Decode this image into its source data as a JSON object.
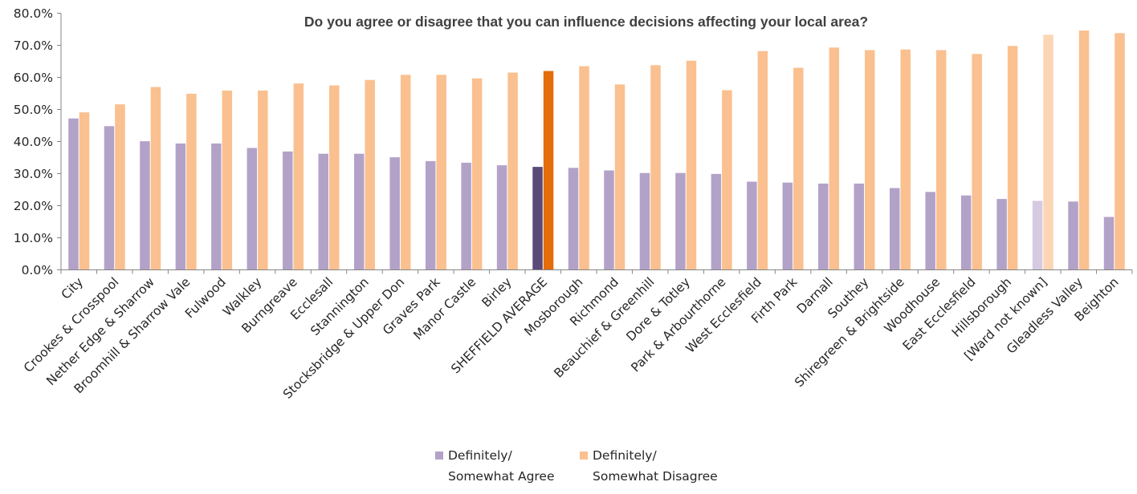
{
  "chart_data": {
    "type": "bar",
    "title": "Do you agree or disagree that you can influence decisions affecting your local area?",
    "xlabel": "",
    "ylabel": "",
    "ylim": [
      0,
      80
    ],
    "yticks": [
      "0.0%",
      "10.0%",
      "20.0%",
      "30.0%",
      "40.0%",
      "50.0%",
      "60.0%",
      "70.0%",
      "80.0%"
    ],
    "grid": false,
    "legend_position": "bottom",
    "categories": [
      "City",
      "Crookes & Crosspool",
      "Nether Edge & Sharrow",
      "Broomhill & Sharrow Vale",
      "Fulwood",
      "Walkley",
      "Burngreave",
      "Ecclesall",
      "Stannington",
      "Stocksbridge & Upper Don",
      "Graves Park",
      "Manor Castle",
      "Birley",
      "SHEFFIELD AVERAGE",
      "Mosborough",
      "Richmond",
      "Beauchief & Greenhill",
      "Dore & Totley",
      "Park & Arbourthorne",
      "West Ecclesfield",
      "Firth Park",
      "Darnall",
      "Southey",
      "Shiregreen & Brightside",
      "Woodhouse",
      "East Ecclesfield",
      "Hillsborough",
      "[Ward not known]",
      "Gleadless Valley",
      "Beighton"
    ],
    "series": [
      {
        "name": "Definitely/ Somewhat Agree",
        "legend_lines": [
          "Definitely/",
          "Somewhat Agree"
        ],
        "color": "#b3a2c8",
        "highlight_colors": {
          "13": "#5a4a78",
          "27": "#d5cae2"
        },
        "values": [
          47.2,
          44.8,
          40.1,
          39.4,
          39.4,
          38.0,
          36.9,
          36.2,
          36.2,
          35.1,
          33.9,
          33.4,
          32.6,
          32.1,
          31.8,
          31.0,
          30.2,
          30.2,
          29.9,
          27.5,
          27.2,
          26.9,
          26.9,
          25.5,
          24.3,
          23.2,
          22.1,
          21.5,
          21.3,
          16.5
        ]
      },
      {
        "name": "Definitely/ Somewhat Disagree",
        "legend_lines": [
          "Definitely/",
          "Somewhat Disagree"
        ],
        "color": "#fac090",
        "highlight_colors": {
          "13": "#e46c0a",
          "27": "#fcd5b5"
        },
        "values": [
          49.1,
          51.6,
          57.0,
          54.9,
          55.9,
          55.9,
          58.1,
          57.5,
          59.2,
          60.8,
          60.8,
          59.7,
          61.5,
          62.0,
          63.5,
          57.8,
          63.8,
          65.2,
          56.0,
          68.2,
          63.0,
          69.3,
          68.5,
          68.7,
          68.5,
          67.3,
          69.8,
          73.3,
          74.6,
          73.8
        ]
      }
    ]
  }
}
